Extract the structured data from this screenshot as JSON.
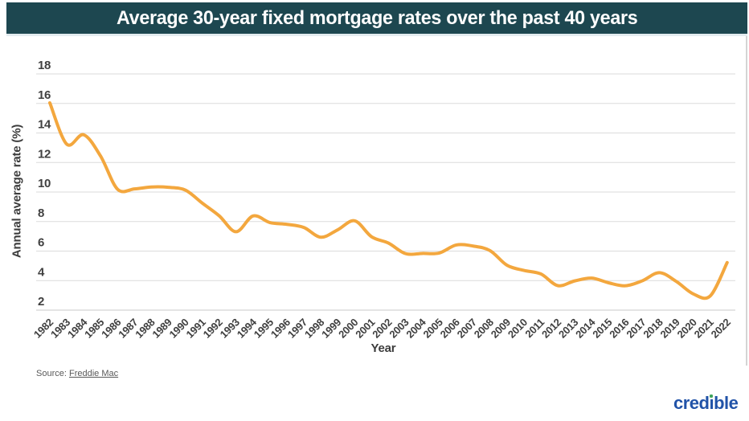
{
  "title": "Average 30-year fixed mortgage rates over the past 40 years",
  "source": {
    "prefix": "Source: ",
    "link_text": "Freddie Mac"
  },
  "logo": {
    "pre": "cred",
    "i": "ı",
    "post": "ble"
  },
  "chart_data": {
    "type": "line",
    "title": "Average 30-year fixed mortgage rates over the past 40 years",
    "xlabel": "Year",
    "ylabel": "Annual average rate (%)",
    "x": [
      1982,
      1983,
      1984,
      1985,
      1986,
      1987,
      1988,
      1989,
      1990,
      1991,
      1992,
      1993,
      1994,
      1995,
      1996,
      1997,
      1998,
      1999,
      2000,
      2001,
      2002,
      2003,
      2004,
      2005,
      2006,
      2007,
      2008,
      2009,
      2010,
      2011,
      2012,
      2013,
      2014,
      2015,
      2016,
      2017,
      2018,
      2019,
      2020,
      2021,
      2022
    ],
    "series": [
      {
        "name": "Average 30-year fixed mortgage rate",
        "values": [
          16.04,
          13.24,
          13.88,
          12.43,
          10.19,
          10.21,
          10.34,
          10.32,
          10.13,
          9.25,
          8.39,
          7.31,
          8.38,
          7.93,
          7.81,
          7.6,
          6.94,
          7.44,
          8.05,
          6.97,
          6.54,
          5.83,
          5.84,
          5.87,
          6.41,
          6.34,
          6.03,
          5.04,
          4.69,
          4.45,
          3.66,
          3.98,
          4.17,
          3.85,
          3.65,
          3.99,
          4.54,
          3.94,
          3.1,
          2.96,
          5.22
        ]
      }
    ],
    "yticks": [
      2,
      4,
      6,
      8,
      10,
      12,
      14,
      16,
      18
    ],
    "ylim": [
      2,
      18
    ],
    "grid": true,
    "legend_position": "none",
    "colors": {
      "line": "#F3A73E",
      "grid": "#DBDBDB",
      "axis": "#C9C9C9",
      "tick_text": "#404040",
      "title_bar_bg": "#1D4750",
      "title_text": "#FFFFFF",
      "logo_blue": "#2153A8",
      "logo_green": "#3FA45B"
    }
  }
}
